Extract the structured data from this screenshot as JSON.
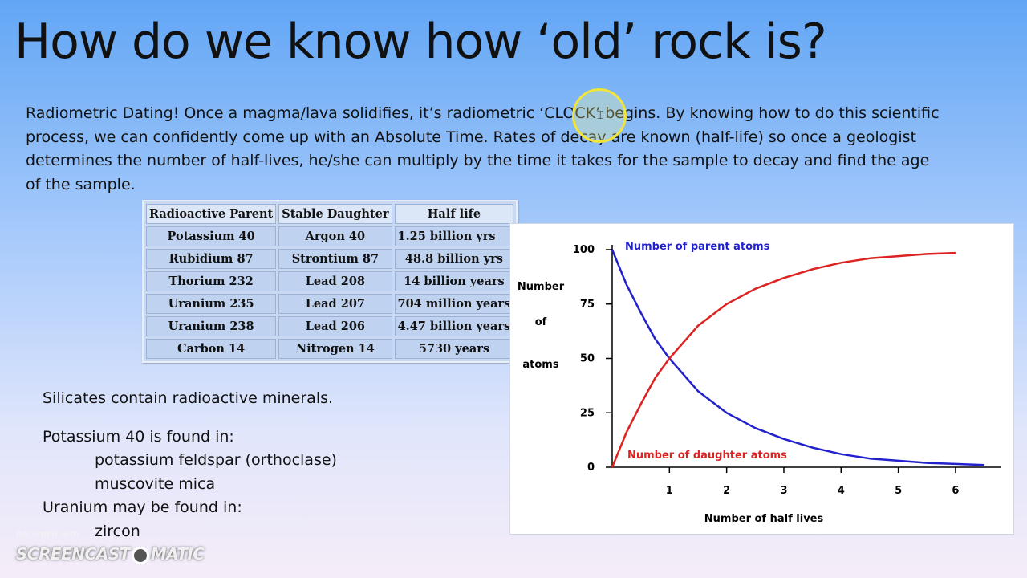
{
  "slide": {
    "title": "How do we know how ‘old’ rock is?",
    "intro": "Radiometric Dating!  Once a magma/lava solidifies, it’s radiometric ‘CLOCK’ begins.  By knowing how to do this scientific process, we can confidently come up with an Absolute Time.  Rates of decay are known (half-life) so once a geologist determines the number of half-lives, he/she can multiply by the time it takes for the sample to decay and find the age of the sample."
  },
  "table": {
    "headers": [
      "Radioactive Parent",
      "Stable Daughter",
      "Half life"
    ],
    "rows": [
      [
        "Potassium 40",
        "Argon 40",
        "1.25 billion yrs"
      ],
      [
        "Rubidium 87",
        "Strontium 87",
        "48.8 billion yrs"
      ],
      [
        "Thorium 232",
        "Lead 208",
        "14 billion years"
      ],
      [
        "Uranium 235",
        "Lead 207",
        "704 million years"
      ],
      [
        "Uranium 238",
        "Lead 206",
        "4.47 billion years"
      ],
      [
        "Carbon 14",
        "Nitrogen 14",
        "5730 years"
      ]
    ]
  },
  "notes": {
    "silicates": "Silicates contain radioactive minerals.",
    "potassium_heading": "Potassium 40 is found in:",
    "potassium_items": [
      "potassium feldspar (orthoclase)",
      "muscovite mica"
    ],
    "uranium_heading": "Uranium may be found in:",
    "uranium_items": [
      "zircon"
    ]
  },
  "chart_data": {
    "type": "line",
    "xlabel": "Number of half lives",
    "ylabel_lines": [
      "Number",
      "of",
      "atoms"
    ],
    "xlim": [
      0,
      6.8
    ],
    "ylim": [
      0,
      100
    ],
    "xticks": [
      1,
      2,
      3,
      4,
      5,
      6
    ],
    "yticks": [
      0,
      25,
      50,
      75,
      100
    ],
    "series": [
      {
        "name": "Number of parent atoms",
        "color": "#2222cc",
        "x": [
          0,
          0.25,
          0.5,
          0.75,
          1,
          1.5,
          2,
          2.5,
          3,
          3.5,
          4,
          4.5,
          5,
          5.5,
          6,
          6.5
        ],
        "y": [
          100,
          84,
          71,
          59,
          50,
          35,
          25,
          18,
          13,
          9,
          6,
          4,
          3,
          2,
          1.5,
          1
        ]
      },
      {
        "name": "Number of daughter atoms",
        "color": "#dd2222",
        "x": [
          0,
          0.25,
          0.5,
          0.75,
          1,
          1.5,
          2,
          2.5,
          3,
          3.5,
          4,
          4.5,
          5,
          5.5,
          6
        ],
        "y": [
          0,
          16,
          29,
          41,
          50,
          65,
          75,
          82,
          87,
          91,
          94,
          96,
          97,
          98,
          98.5
        ]
      }
    ]
  },
  "watermark": {
    "recorded": "Recorded with",
    "brand_left": "SCREENCAST",
    "brand_right": "MATIC"
  }
}
